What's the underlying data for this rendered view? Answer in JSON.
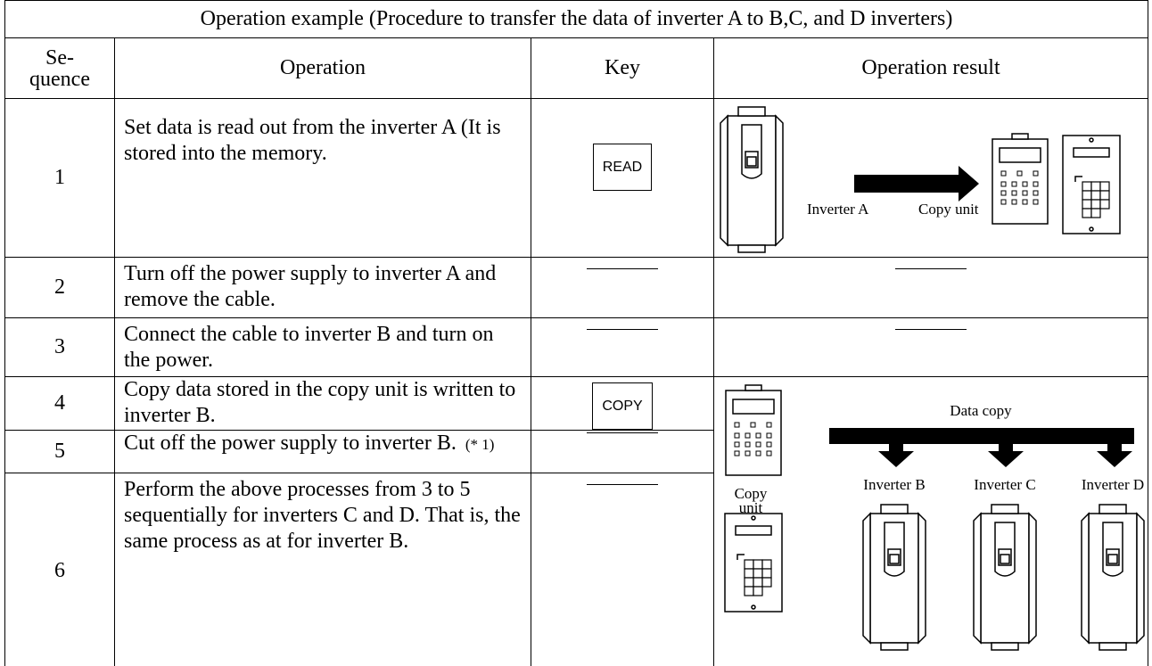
{
  "title": "Operation example (Procedure to transfer the data of inverter A to B,C, and D inverters)",
  "headers": [
    "Se-\nquence",
    "Operation",
    "Key",
    "Operation result"
  ],
  "rows": [
    {
      "seq": "1",
      "operation": "Set data is read out from the inverter A (It is stored into the memory.",
      "key": "READ"
    },
    {
      "seq": "2",
      "operation": "Turn off the power supply to inverter A and remove the cable."
    },
    {
      "seq": "3",
      "operation": "Connect the cable to inverter B and turn on the power."
    },
    {
      "seq": "4",
      "operation": "Copy data stored in the copy unit is written to inverter B.",
      "key": "COPY"
    },
    {
      "seq": "5",
      "operation": "Cut off the power supply to inverter B.",
      "note": "(* 1)"
    },
    {
      "seq": "6",
      "operation": "Perform the above processes from 3 to 5 sequentially for inverters C and D. That is, the same process as at for inverter B."
    }
  ],
  "result_1": {
    "inverter": "Inverter A",
    "copy_unit": "Copy unit"
  },
  "result_4_6": {
    "copy_unit": "Copy\nunit",
    "data_copy": "Data copy",
    "inverters": [
      "Inverter B",
      "Inverter C",
      "Inverter D"
    ]
  }
}
